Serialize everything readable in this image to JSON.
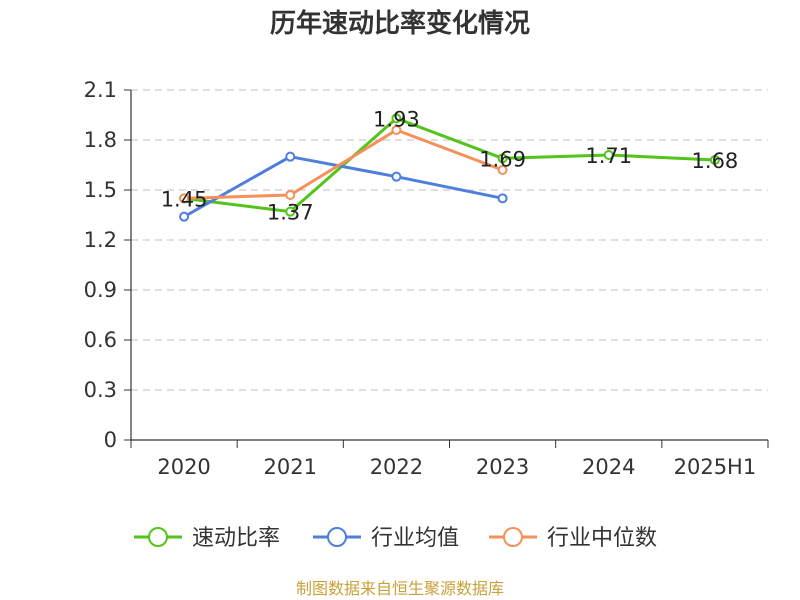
{
  "chart_data": {
    "type": "line",
    "title": "历年速动比率变化情况",
    "categories": [
      "2020",
      "2021",
      "2022",
      "2023",
      "2024",
      "2025H1"
    ],
    "ylim": [
      0,
      2.1
    ],
    "yticks": [
      "0",
      "0.3",
      "0.6",
      "0.9",
      "1.2",
      "1.5",
      "1.8",
      "2.1"
    ],
    "grid": true,
    "legend_position": "bottom",
    "series": [
      {
        "name": "速动比率",
        "color": "#52c41a",
        "values": [
          1.45,
          1.37,
          1.93,
          1.69,
          1.71,
          1.68
        ],
        "labels": [
          "1.45",
          "1.37",
          "1.93",
          "1.69",
          "1.71",
          "1.68"
        ]
      },
      {
        "name": "行业均值",
        "color": "#4f7fdc",
        "values": [
          1.34,
          1.7,
          1.58,
          1.45,
          null,
          null
        ]
      },
      {
        "name": "行业中位数",
        "color": "#f59058",
        "values": [
          1.45,
          1.47,
          1.86,
          1.62,
          null,
          null
        ]
      }
    ]
  },
  "source": "制图数据来自恒生聚源数据库"
}
